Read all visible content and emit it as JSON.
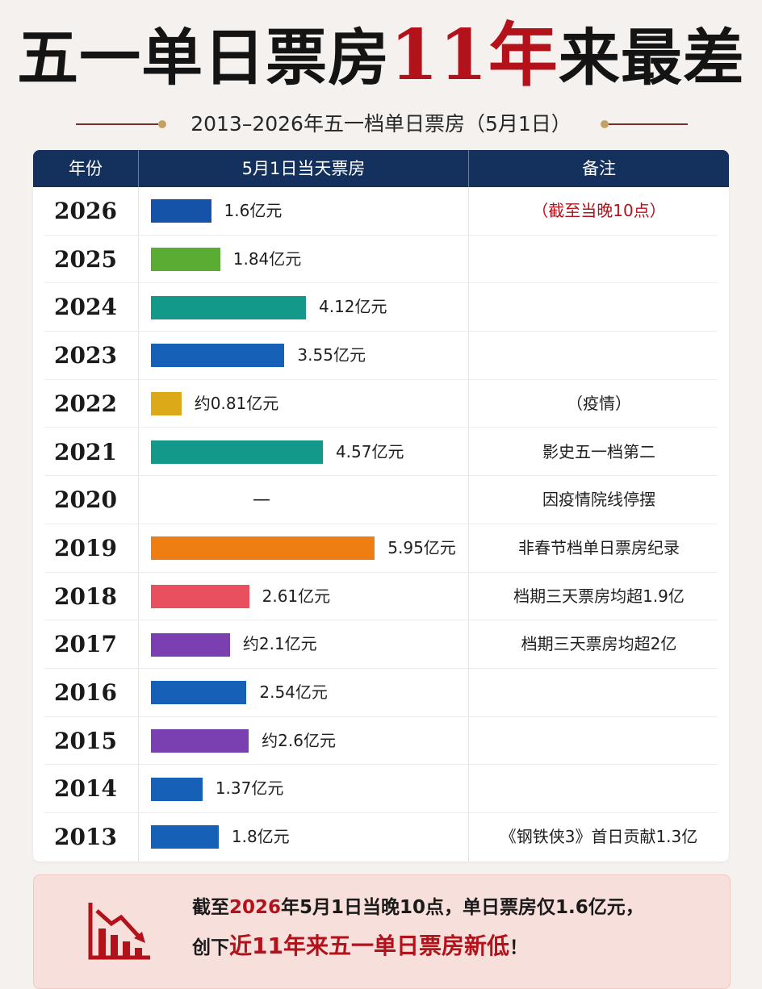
{
  "title": {
    "part1": "五一单日票房",
    "highlight": "11年",
    "part2": "来最差"
  },
  "subtitle": "2013–2026年五一档单日票房（5月1日）",
  "headers": {
    "year": "年份",
    "value": "5月1日当天票房",
    "note": "备注"
  },
  "colors": {
    "header_bg": "#14305c",
    "accent_red": "#b3121b",
    "dot": "#c4a266"
  },
  "chart_data": {
    "type": "bar",
    "orientation": "horizontal",
    "categories": [
      "2026",
      "2025",
      "2024",
      "2023",
      "2022",
      "2021",
      "2020",
      "2019",
      "2018",
      "2017",
      "2016",
      "2015",
      "2014",
      "2013"
    ],
    "values": [
      1.6,
      1.84,
      4.12,
      3.55,
      0.81,
      4.57,
      null,
      5.95,
      2.61,
      2.1,
      2.54,
      2.6,
      1.37,
      1.8
    ],
    "value_labels": [
      "1.6亿元",
      "1.84亿元",
      "4.12亿元",
      "3.55亿元",
      "约0.81亿元",
      "4.57亿元",
      "—",
      "5.95亿元",
      "2.61亿元",
      "约2.1亿元",
      "2.54亿元",
      "约2.6亿元",
      "1.37亿元",
      "1.8亿元"
    ],
    "bar_colors": [
      "#1553a8",
      "#5aac32",
      "#12998a",
      "#1760b7",
      "#dcaa18",
      "#12998a",
      null,
      "#ee7d12",
      "#e9505f",
      "#7a3fb0",
      "#1760b7",
      "#7a3fb0",
      "#1760b7",
      "#1760b7"
    ],
    "notes": [
      "（截至当晚10点）",
      "",
      "",
      "",
      "（疫情）",
      "影史五一档第二",
      "因疫情院线停摆",
      "非春节档单日票房纪录",
      "档期三天票房均超1.9亿",
      "档期三天票房均超2亿",
      "",
      "",
      "",
      "《钢铁侠3》首日贡献1.3亿"
    ],
    "note_red": [
      true,
      false,
      false,
      false,
      false,
      false,
      false,
      false,
      false,
      false,
      false,
      false,
      false,
      false
    ],
    "xlim": [
      0,
      6
    ],
    "unit": "亿元"
  },
  "footer": {
    "line1_a": "截至",
    "line1_year": "2026",
    "line1_b": "年5月1日当晚10点，单日票房仅1.6亿元，",
    "line2_a": "创下",
    "line2_highlight": "近11年来五一单日票房新低",
    "line2_b": "！",
    "icon": "declining-chart-icon"
  }
}
